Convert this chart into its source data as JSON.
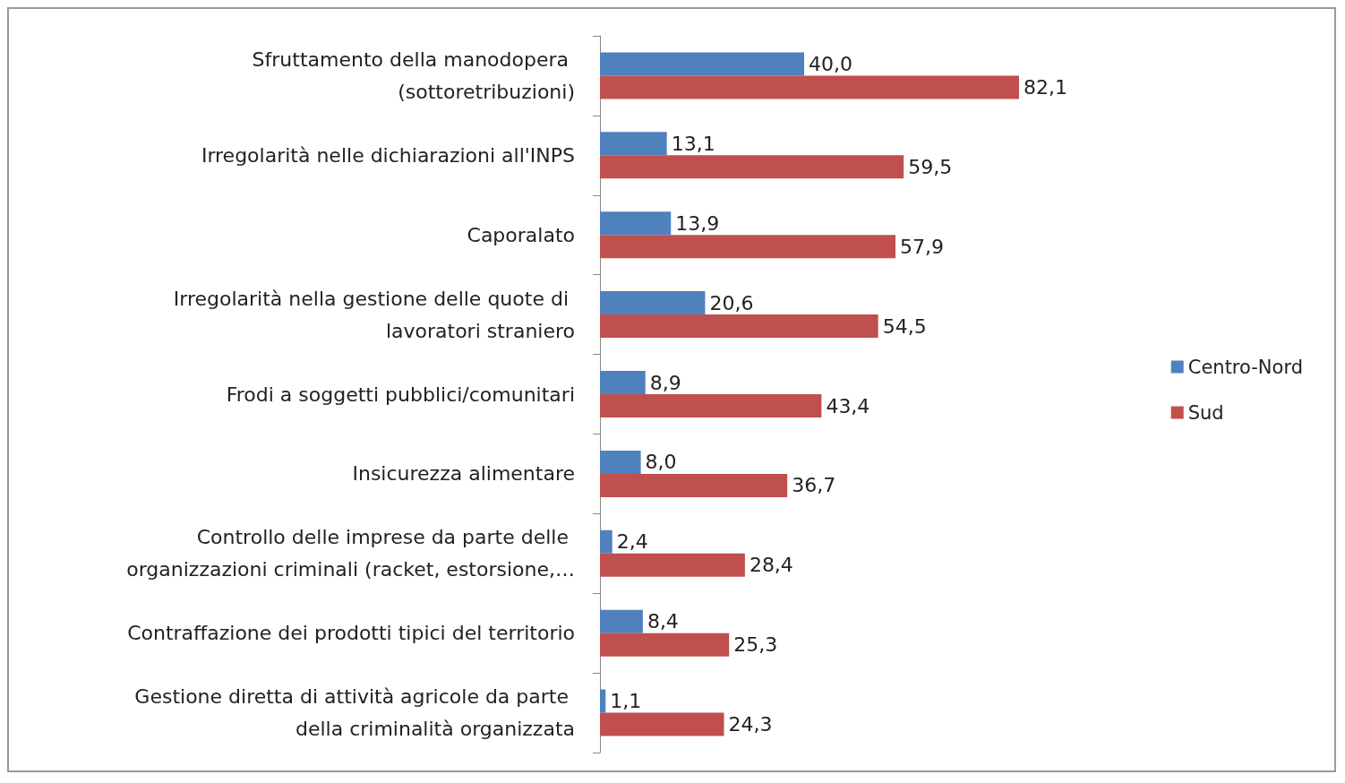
{
  "chart_data": {
    "type": "bar",
    "orientation": "horizontal",
    "legend": "right",
    "categories": [
      "Sfruttamento della manodopera (sottoretribuzioni)",
      "Irregolarità nelle dichiarazioni all'INPS",
      "Caporalato",
      "Irregolarità nella gestione delle quote di lavoratori straniero",
      "Frodi a soggetti pubblici/comunitari",
      "Insicurezza alimentare",
      "Controllo delle imprese da parte delle organizzazioni criminali (racket, estorsione,…",
      "Contraffazione dei prodotti tipici del territorio",
      "Gestione diretta di attività agricole da parte della criminalità organizzata"
    ],
    "series": [
      {
        "name": "Centro-Nord",
        "color": "#4f81bd",
        "values": [
          40.0,
          13.1,
          13.9,
          20.6,
          8.9,
          8.0,
          2.4,
          8.4,
          1.1
        ],
        "value_labels": [
          "40,0",
          "13,1",
          "13,9",
          "20,6",
          "8,9",
          "8,0",
          "2,4",
          "8,4",
          "1,1"
        ]
      },
      {
        "name": "Sud",
        "color": "#c0504d",
        "values": [
          82.1,
          59.5,
          57.9,
          54.5,
          43.4,
          36.7,
          28.4,
          25.3,
          24.3
        ],
        "value_labels": [
          "82,1",
          "59,5",
          "57,9",
          "54,5",
          "43,4",
          "36,7",
          "28,4",
          "25,3",
          "24,3"
        ]
      }
    ]
  }
}
